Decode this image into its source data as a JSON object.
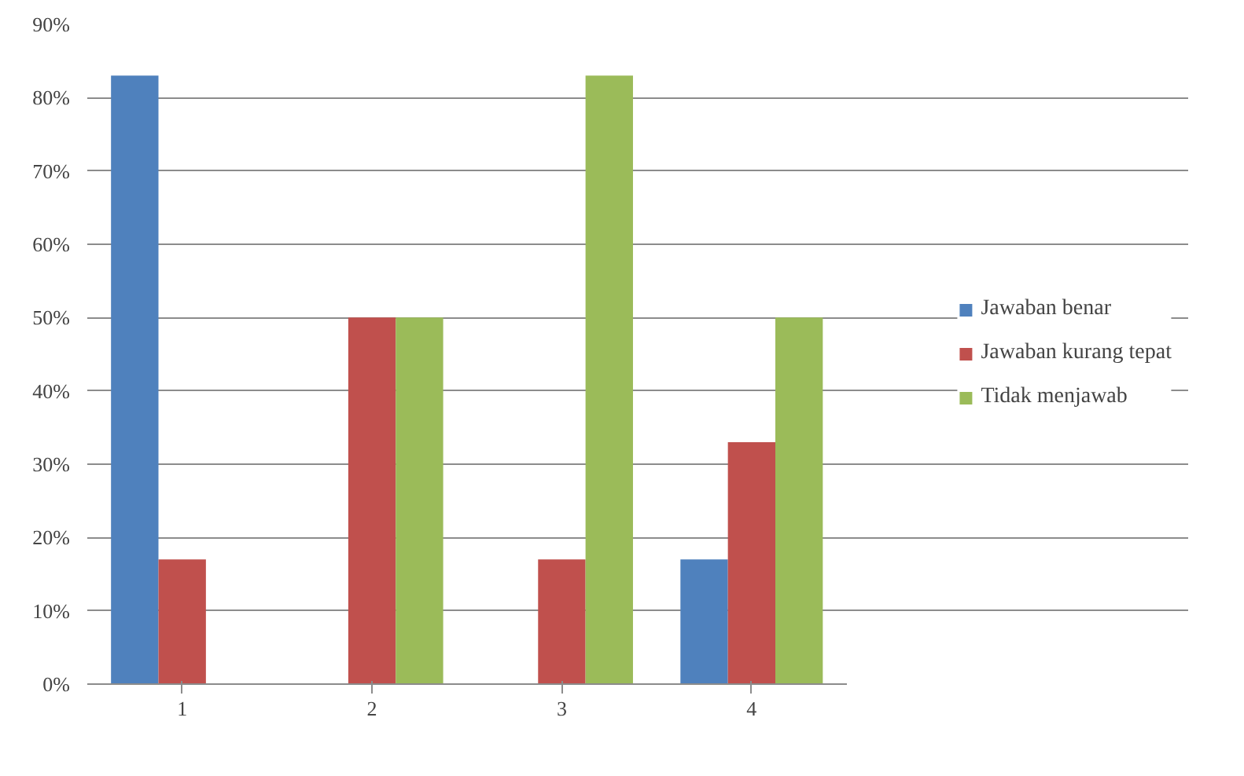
{
  "chart_data": {
    "type": "bar",
    "categories": [
      "1",
      "2",
      "3",
      "4"
    ],
    "series": [
      {
        "name": "Jawaban benar",
        "color": "#4f81bd",
        "values": [
          83,
          0,
          0,
          17
        ]
      },
      {
        "name": "Jawaban kurang tepat",
        "color": "#c0504d",
        "values": [
          17,
          50,
          17,
          33
        ]
      },
      {
        "name": "Tidak menjawab",
        "color": "#9bbb59",
        "values": [
          0,
          50,
          83,
          50
        ]
      }
    ],
    "ylim": [
      0,
      90
    ],
    "yticks": [
      {
        "value": 0,
        "label": "0%"
      },
      {
        "value": 10,
        "label": "10%"
      },
      {
        "value": 20,
        "label": "20%"
      },
      {
        "value": 30,
        "label": "30%"
      },
      {
        "value": 40,
        "label": "40%"
      },
      {
        "value": 50,
        "label": "50%"
      },
      {
        "value": 60,
        "label": "60%"
      },
      {
        "value": 70,
        "label": "70%"
      },
      {
        "value": 80,
        "label": "80%"
      },
      {
        "value": 90,
        "label": "90%"
      }
    ],
    "grid": "y",
    "legend": "right"
  }
}
